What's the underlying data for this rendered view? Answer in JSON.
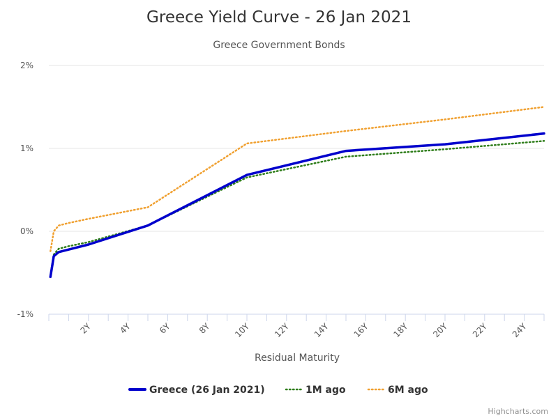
{
  "chart_data": {
    "type": "line",
    "title": "Greece Yield Curve - 26 Jan 2021",
    "subtitle": "Greece Government Bonds",
    "xlabel": "Residual Maturity",
    "ylabel": "",
    "xlim": [
      0,
      25
    ],
    "ylim": [
      -1,
      2
    ],
    "x_ticks": [
      2,
      4,
      6,
      8,
      10,
      12,
      14,
      16,
      18,
      20,
      22,
      24
    ],
    "x_tick_labels": [
      "2Y",
      "4Y",
      "6Y",
      "8Y",
      "10Y",
      "12Y",
      "14Y",
      "16Y",
      "18Y",
      "20Y",
      "22Y",
      "24Y"
    ],
    "y_ticks": [
      -1,
      0,
      1,
      2
    ],
    "y_tick_labels": [
      "-1%",
      "0%",
      "1%",
      "2%"
    ],
    "grid": true,
    "legend_position": "bottom-center",
    "series": [
      {
        "name": "Greece (26 Jan 2021)",
        "color": "#0000cc",
        "style": "solid",
        "x": [
          0.08,
          0.25,
          0.5,
          1,
          2,
          5,
          10,
          15,
          20,
          25
        ],
        "values": [
          -0.55,
          -0.3,
          -0.25,
          -0.22,
          -0.16,
          0.07,
          0.68,
          0.97,
          1.05,
          1.18
        ]
      },
      {
        "name": "1M ago",
        "color": "#2e7d1a",
        "style": "dotted",
        "x": [
          0.08,
          0.25,
          0.5,
          1,
          2,
          5,
          10,
          15,
          20,
          25
        ],
        "values": [
          -0.53,
          -0.28,
          -0.21,
          -0.18,
          -0.13,
          0.07,
          0.65,
          0.9,
          0.99,
          1.09
        ]
      },
      {
        "name": "6M ago",
        "color": "#f0a030",
        "style": "dotted",
        "x": [
          0.08,
          0.25,
          0.5,
          1,
          2,
          5,
          10,
          15,
          20,
          25
        ],
        "values": [
          -0.24,
          0.0,
          0.07,
          0.1,
          0.15,
          0.29,
          1.06,
          1.21,
          1.35,
          1.5
        ]
      }
    ],
    "credits": "Highcharts.com"
  }
}
